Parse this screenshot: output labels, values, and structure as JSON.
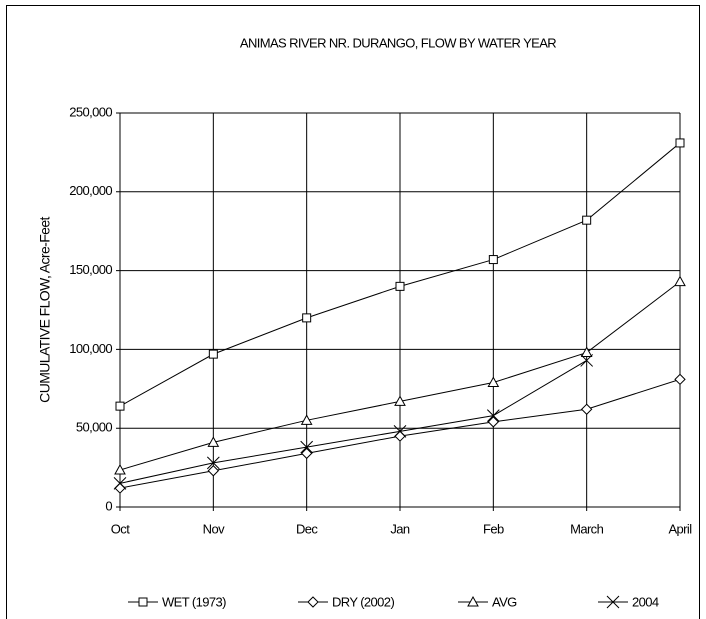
{
  "chart_data": {
    "type": "line",
    "title": "ANIMAS RIVER NR. DURANGO, FLOW BY WATER YEAR",
    "y_label": "CUMULATIVE FLOW, Acre-Feet",
    "categories": [
      "Oct",
      "Nov",
      "Dec",
      "Jan",
      "Feb",
      "March",
      "April"
    ],
    "series": [
      {
        "name": "WET (1973)",
        "color": "#000000",
        "marker": "square",
        "values": [
          64000,
          97000,
          120000,
          140000,
          157000,
          182000,
          231000
        ]
      },
      {
        "name": "DRY (2002)",
        "color": "#000000",
        "marker": "diamond",
        "values": [
          12000,
          23000,
          34000,
          45000,
          54000,
          62000,
          81000
        ]
      },
      {
        "name": "AVG",
        "color": "#000000",
        "marker": "triangle",
        "values": [
          23500,
          41000,
          55000,
          67000,
          79000,
          98000,
          143000
        ]
      },
      {
        "name": "2004",
        "color": "#000000",
        "marker": "x",
        "values": [
          15000,
          28000,
          38000,
          48000,
          58000,
          93000,
          null
        ]
      }
    ],
    "ylim": [
      0,
      250000
    ],
    "yticks": [
      0,
      {
        "value": 50000,
        "label": "50,000"
      },
      {
        "value": 100000,
        "label": "100,000"
      },
      {
        "value": 150000,
        "label": "150,000"
      },
      {
        "value": 200000,
        "label": "200,000"
      },
      {
        "value": 250000,
        "label": "250,000"
      }
    ],
    "grid": true,
    "legend": "bottom"
  }
}
